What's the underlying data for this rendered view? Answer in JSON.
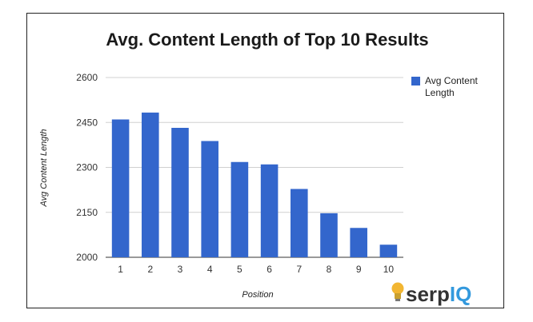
{
  "chart_data": {
    "type": "bar",
    "title": "Avg. Content Length of Top 10 Results",
    "xlabel": "Position",
    "ylabel": "Avg Content Length",
    "categories": [
      "1",
      "2",
      "3",
      "4",
      "5",
      "6",
      "7",
      "8",
      "9",
      "10"
    ],
    "series": [
      {
        "name": "Avg Content Length",
        "values": [
          2460,
          2483,
          2432,
          2388,
          2318,
          2310,
          2228,
          2147,
          2098,
          2042
        ],
        "color": "#3366cc"
      }
    ],
    "ylim": [
      2000,
      2600
    ],
    "yticks": [
      "2600",
      "2450",
      "2300",
      "2150",
      "2000"
    ],
    "grid": true,
    "legend_position": "right"
  },
  "brand": {
    "logo_prefix": "serp",
    "logo_suffix": "IQ",
    "logo_prefix_color": "#333333",
    "logo_suffix_color": "#3399dd",
    "bulb_color": "#f2b632"
  }
}
